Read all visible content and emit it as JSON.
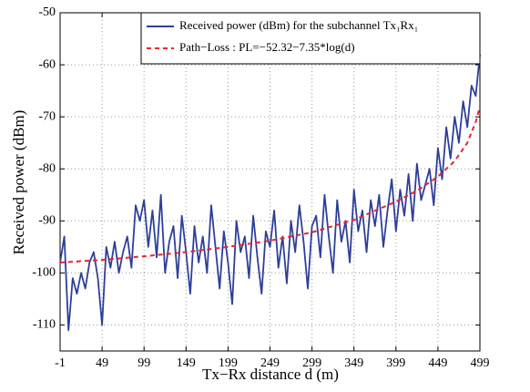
{
  "chart_data": {
    "type": "line",
    "xlabel": "Tx−Rx distance d (m)",
    "ylabel": "Received power (dBm)",
    "xlim": [
      -1,
      499
    ],
    "xticks": [
      -1,
      49,
      99,
      149,
      199,
      249,
      299,
      349,
      399,
      449,
      499
    ],
    "ylim": [
      -115,
      -50
    ],
    "yticks": [
      -110,
      -100,
      -90,
      -80,
      -70,
      -60,
      -50
    ],
    "grid": true,
    "legend": "upper right",
    "series": [
      {
        "name": "Received power (dBm) for the subchannel Tx₁Rx₁",
        "color": "#2e3f9a",
        "style": "solid",
        "x": [
          -1,
          4,
          9,
          14,
          19,
          24,
          29,
          34,
          39,
          44,
          49,
          54,
          59,
          64,
          69,
          74,
          79,
          84,
          89,
          94,
          99,
          104,
          109,
          114,
          119,
          124,
          129,
          134,
          139,
          144,
          149,
          154,
          159,
          164,
          169,
          174,
          179,
          184,
          189,
          194,
          199,
          204,
          209,
          214,
          219,
          224,
          229,
          234,
          239,
          244,
          249,
          254,
          259,
          264,
          269,
          274,
          279,
          284,
          289,
          294,
          299,
          304,
          309,
          314,
          319,
          324,
          329,
          334,
          339,
          344,
          349,
          354,
          359,
          364,
          369,
          374,
          379,
          384,
          389,
          394,
          399,
          404,
          409,
          414,
          419,
          424,
          429,
          434,
          439,
          444,
          449,
          454,
          459,
          464,
          469,
          474,
          479,
          484,
          489,
          494,
          499
        ],
        "values": [
          -98,
          -93,
          -111,
          -101,
          -104,
          -100,
          -103,
          -98,
          -96,
          -101,
          -110,
          -95,
          -99,
          -94,
          -100,
          -96,
          -93,
          -99,
          -87,
          -90,
          -86,
          -95,
          -88,
          -97,
          -85,
          -100,
          -94,
          -91,
          -101,
          -89,
          -96,
          -104,
          -91,
          -98,
          -93,
          -100,
          -87,
          -95,
          -103,
          -92,
          -98,
          -106,
          -90,
          -96,
          -93,
          -101,
          -89,
          -97,
          -104,
          -92,
          -95,
          -88,
          -99,
          -93,
          -102,
          -90,
          -96,
          -87,
          -94,
          -103,
          -91,
          -89,
          -97,
          -85,
          -93,
          -100,
          -86,
          -94,
          -90,
          -98,
          -84,
          -92,
          -88,
          -96,
          -86,
          -91,
          -85,
          -95,
          -88,
          -82,
          -92,
          -84,
          -89,
          -81,
          -90,
          -79,
          -86,
          -83,
          -80,
          -87,
          -76,
          -82,
          -72,
          -78,
          -70,
          -75,
          -67,
          -72,
          -64,
          -66,
          -58
        ]
      },
      {
        "name": "Path−Loss : PL=−52.32−7.35*log(d)",
        "color": "#e8262a",
        "style": "dashed",
        "x": [
          -1,
          49,
          99,
          149,
          199,
          249,
          299,
          349,
          399,
          424,
          449,
          469,
          484,
          494,
          499
        ],
        "values": [
          -98,
          -97.5,
          -96.8,
          -96,
          -95,
          -93.8,
          -92.2,
          -89.8,
          -86.3,
          -84.2,
          -81.5,
          -78.5,
          -75,
          -71,
          -68
        ]
      }
    ]
  }
}
